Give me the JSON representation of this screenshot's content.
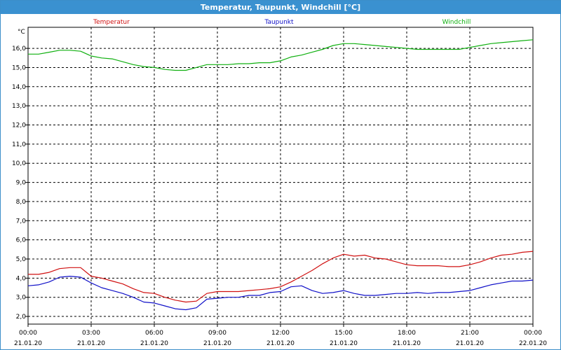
{
  "window": {
    "title": "Temperatur, Taupunkt, Windchill [°C]"
  },
  "colors": {
    "temperature": "#d01010",
    "dewpoint": "#1010c8",
    "windchill": "#10b010",
    "titlebar": "#3a91d0",
    "grid": "#000000"
  },
  "chart_data": {
    "type": "line",
    "title": "Temperatur, Taupunkt, Windchill [°C]",
    "ylabel": "°C",
    "xlabel": "",
    "ylim": [
      1.6,
      17.1
    ],
    "y_ticks": [
      "2,0",
      "3,0",
      "4,0",
      "5,0",
      "6,0",
      "7,0",
      "8,0",
      "9,0",
      "10,0",
      "11,0",
      "12,0",
      "13,0",
      "14,0",
      "15,0",
      "16,0"
    ],
    "y_tick_values": [
      2,
      3,
      4,
      5,
      6,
      7,
      8,
      9,
      10,
      11,
      12,
      13,
      14,
      15,
      16
    ],
    "x_range_hours": [
      0,
      24
    ],
    "x_tick_hours": [
      0,
      3,
      6,
      9,
      12,
      15,
      18,
      21,
      24
    ],
    "x_ticks": [
      {
        "time": "00:00",
        "date": "21.01.20"
      },
      {
        "time": "03:00",
        "date": "21.01.20"
      },
      {
        "time": "06:00",
        "date": "21.01.20"
      },
      {
        "time": "09:00",
        "date": "21.01.20"
      },
      {
        "time": "12:00",
        "date": "21.01.20"
      },
      {
        "time": "15:00",
        "date": "21.01.20"
      },
      {
        "time": "18:00",
        "date": "21.01.20"
      },
      {
        "time": "21:00",
        "date": "21.01.20"
      },
      {
        "time": "00:00",
        "date": "22.01.20"
      }
    ],
    "grid": true,
    "legend_position": "top",
    "series": [
      {
        "name": "Temperatur",
        "color": "#d01010",
        "points": [
          [
            0,
            4.2
          ],
          [
            0.5,
            4.2
          ],
          [
            1,
            4.3
          ],
          [
            1.5,
            4.5
          ],
          [
            2,
            4.55
          ],
          [
            2.5,
            4.55
          ],
          [
            3,
            4.1
          ],
          [
            3.5,
            4.0
          ],
          [
            4,
            3.85
          ],
          [
            4.5,
            3.7
          ],
          [
            5,
            3.45
          ],
          [
            5.5,
            3.25
          ],
          [
            6,
            3.2
          ],
          [
            6.5,
            3.0
          ],
          [
            7,
            2.85
          ],
          [
            7.5,
            2.75
          ],
          [
            8,
            2.8
          ],
          [
            8.5,
            3.2
          ],
          [
            9,
            3.3
          ],
          [
            9.5,
            3.3
          ],
          [
            10,
            3.3
          ],
          [
            10.5,
            3.35
          ],
          [
            11,
            3.4
          ],
          [
            11.5,
            3.45
          ],
          [
            12,
            3.55
          ],
          [
            12.5,
            3.8
          ],
          [
            13,
            4.1
          ],
          [
            13.5,
            4.4
          ],
          [
            14,
            4.75
          ],
          [
            14.5,
            5.05
          ],
          [
            15,
            5.25
          ],
          [
            15.5,
            5.15
          ],
          [
            16,
            5.2
          ],
          [
            16.5,
            5.05
          ],
          [
            17,
            5.0
          ],
          [
            17.5,
            4.85
          ],
          [
            18,
            4.7
          ],
          [
            18.5,
            4.65
          ],
          [
            19,
            4.65
          ],
          [
            19.5,
            4.65
          ],
          [
            20,
            4.6
          ],
          [
            20.5,
            4.6
          ],
          [
            21,
            4.7
          ],
          [
            21.5,
            4.85
          ],
          [
            22,
            5.05
          ],
          [
            22.5,
            5.2
          ],
          [
            23,
            5.25
          ],
          [
            23.5,
            5.35
          ],
          [
            24,
            5.4
          ]
        ]
      },
      {
        "name": "Taupunkt",
        "color": "#1010c8",
        "points": [
          [
            0,
            3.6
          ],
          [
            0.5,
            3.65
          ],
          [
            1,
            3.8
          ],
          [
            1.5,
            4.05
          ],
          [
            2,
            4.1
          ],
          [
            2.5,
            4.05
          ],
          [
            3,
            3.75
          ],
          [
            3.5,
            3.5
          ],
          [
            4,
            3.35
          ],
          [
            4.5,
            3.2
          ],
          [
            5,
            3.0
          ],
          [
            5.5,
            2.75
          ],
          [
            6,
            2.7
          ],
          [
            6.5,
            2.55
          ],
          [
            7,
            2.4
          ],
          [
            7.5,
            2.35
          ],
          [
            8,
            2.45
          ],
          [
            8.5,
            2.9
          ],
          [
            9,
            2.95
          ],
          [
            9.5,
            3.0
          ],
          [
            10,
            3.0
          ],
          [
            10.5,
            3.1
          ],
          [
            11,
            3.1
          ],
          [
            11.5,
            3.25
          ],
          [
            12,
            3.3
          ],
          [
            12.5,
            3.55
          ],
          [
            13,
            3.6
          ],
          [
            13.5,
            3.35
          ],
          [
            14,
            3.2
          ],
          [
            14.5,
            3.25
          ],
          [
            15,
            3.35
          ],
          [
            15.5,
            3.2
          ],
          [
            16,
            3.1
          ],
          [
            16.5,
            3.1
          ],
          [
            17,
            3.15
          ],
          [
            17.5,
            3.2
          ],
          [
            18,
            3.2
          ],
          [
            18.5,
            3.25
          ],
          [
            19,
            3.2
          ],
          [
            19.5,
            3.25
          ],
          [
            20,
            3.25
          ],
          [
            20.5,
            3.3
          ],
          [
            21,
            3.35
          ],
          [
            21.5,
            3.5
          ],
          [
            22,
            3.65
          ],
          [
            22.5,
            3.75
          ],
          [
            23,
            3.85
          ],
          [
            23.5,
            3.85
          ],
          [
            24,
            3.9
          ]
        ]
      },
      {
        "name": "Windchill",
        "color": "#10b010",
        "points": [
          [
            0,
            15.7
          ],
          [
            0.5,
            15.7
          ],
          [
            1,
            15.8
          ],
          [
            1.5,
            15.9
          ],
          [
            2,
            15.9
          ],
          [
            2.5,
            15.85
          ],
          [
            3,
            15.6
          ],
          [
            3.5,
            15.5
          ],
          [
            4,
            15.45
          ],
          [
            4.5,
            15.3
          ],
          [
            5,
            15.15
          ],
          [
            5.5,
            15.05
          ],
          [
            6,
            15.0
          ],
          [
            6.5,
            14.9
          ],
          [
            7,
            14.85
          ],
          [
            7.5,
            14.85
          ],
          [
            8,
            15.0
          ],
          [
            8.5,
            15.15
          ],
          [
            9,
            15.15
          ],
          [
            9.5,
            15.15
          ],
          [
            10,
            15.2
          ],
          [
            10.5,
            15.2
          ],
          [
            11,
            15.25
          ],
          [
            11.5,
            15.25
          ],
          [
            12,
            15.35
          ],
          [
            12.5,
            15.55
          ],
          [
            13,
            15.65
          ],
          [
            13.5,
            15.8
          ],
          [
            14,
            15.95
          ],
          [
            14.5,
            16.15
          ],
          [
            15,
            16.25
          ],
          [
            15.5,
            16.25
          ],
          [
            16,
            16.2
          ],
          [
            16.5,
            16.15
          ],
          [
            17,
            16.1
          ],
          [
            17.5,
            16.05
          ],
          [
            18,
            16.0
          ],
          [
            18.5,
            15.95
          ],
          [
            19,
            15.95
          ],
          [
            19.5,
            15.95
          ],
          [
            20,
            15.95
          ],
          [
            20.5,
            15.95
          ],
          [
            21,
            16.05
          ],
          [
            21.5,
            16.15
          ],
          [
            22,
            16.25
          ],
          [
            22.5,
            16.3
          ],
          [
            23,
            16.35
          ],
          [
            23.5,
            16.4
          ],
          [
            24,
            16.45
          ]
        ]
      }
    ]
  }
}
